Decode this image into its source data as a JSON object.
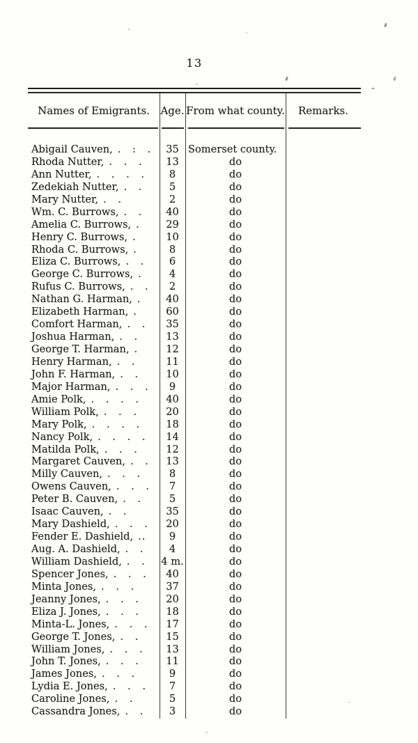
{
  "page": {
    "number": "13"
  },
  "table": {
    "headers": [
      "Names of Emigrants.",
      "Age.",
      "From what county.",
      "Remarks."
    ],
    "rows": [
      {
        "name": "Abigail Cauven,",
        "dots": ". : .",
        "age": "35",
        "county": "Somerset county."
      },
      {
        "name": "Rhoda Nutter,",
        "dots": ". . .",
        "age": "13",
        "county": "do"
      },
      {
        "name": "Ann Nutter,",
        "dots": ". . . .",
        "age": "8",
        "county": "do"
      },
      {
        "name": "Zedekiah Nutter,",
        "dots": ". .",
        "age": "5",
        "county": "do"
      },
      {
        "name": "Mary Nutter,",
        "dots": ". .",
        "age": "2",
        "county": "do"
      },
      {
        "name": "Wm. C. Burrows,",
        "dots": ". .",
        "age": "40",
        "county": "do"
      },
      {
        "name": "Amelia C. Burrows,",
        "dots": ".",
        "age": "29",
        "county": "do"
      },
      {
        "name": "Henry C. Burrows,",
        "dots": ".",
        "age": "10",
        "county": "do"
      },
      {
        "name": "Rhoda C. Burrows,",
        "dots": ".",
        "age": "8",
        "county": "do"
      },
      {
        "name": "Eliza C. Burrows,",
        "dots": ". .",
        "age": "6",
        "county": "do"
      },
      {
        "name": "George C. Burrows,",
        "dots": ".",
        "age": "4",
        "county": "do"
      },
      {
        "name": "Rufus C. Burrows,",
        "dots": ". .",
        "age": "2",
        "county": "do"
      },
      {
        "name": "Nathan G. Harman,",
        "dots": ".",
        "age": "40",
        "county": "do"
      },
      {
        "name": "Elizabeth Harman,",
        "dots": ".",
        "age": "60",
        "county": "do"
      },
      {
        "name": "Comfort Harman,",
        "dots": ". .",
        "age": "35",
        "county": "do"
      },
      {
        "name": "Joshua Harman,",
        "dots": ". .",
        "age": "13",
        "county": "do"
      },
      {
        "name": "George T. Harman,",
        "dots": ".",
        "age": "12",
        "county": "do"
      },
      {
        "name": "Henry Harman,",
        "dots": ". .",
        "age": "11",
        "county": "do"
      },
      {
        "name": "John F. Harman,",
        "dots": ". .",
        "age": "10",
        "county": "do"
      },
      {
        "name": "Major Harman,",
        "dots": ". . .",
        "age": "9",
        "county": "do"
      },
      {
        "name": "Amie Polk,",
        "dots": ". . . .",
        "age": "40",
        "county": "do"
      },
      {
        "name": "William Polk,",
        "dots": ". . .",
        "age": "20",
        "county": "do"
      },
      {
        "name": "Mary Polk,",
        "dots": ". . . .",
        "age": "18",
        "county": "do"
      },
      {
        "name": "Nancy Polk,",
        "dots": ". . . .",
        "age": "14",
        "county": "do"
      },
      {
        "name": "Matilda Polk,",
        "dots": ". . .",
        "age": "12",
        "county": "do"
      },
      {
        "name": "Margaret Cauven,",
        "dots": ". .",
        "age": "13",
        "county": "do"
      },
      {
        "name": "Milly Cauven,",
        "dots": ". . .",
        "age": "8",
        "county": "do"
      },
      {
        "name": "Owens Cauven,",
        "dots": ". . .",
        "age": "7",
        "county": "do"
      },
      {
        "name": "Peter B. Cauven,",
        "dots": ". .",
        "age": "5",
        "county": "do"
      },
      {
        "name": "Isaac Cauven,",
        "dots": ". .",
        "age": "35",
        "county": "do"
      },
      {
        "name": "Mary Dashield,",
        "dots": ". . .",
        "age": "20",
        "county": "do"
      },
      {
        "name": "Fender E. Dashield,",
        "dots": "..",
        "age": "9",
        "county": "do"
      },
      {
        "name": "Aug. A. Dashield,",
        "dots": ". .",
        "age": "4",
        "county": "do"
      },
      {
        "name": "William Dashield,",
        "dots": ". .",
        "age": "4 m.",
        "county": "do"
      },
      {
        "name": "Spencer Jones,",
        "dots": ". . .",
        "age": "40",
        "county": "do"
      },
      {
        "name": "Minta Jones,",
        "dots": ". . .",
        "age": "37",
        "county": "do"
      },
      {
        "name": "Jeanny Jones,",
        "dots": ". . .",
        "age": "20",
        "county": "do"
      },
      {
        "name": "Eliza J. Jones,",
        "dots": ". . .",
        "age": "18",
        "county": "do"
      },
      {
        "name": "Minta-L. Jones,",
        "dots": ". . . .",
        "age": "17",
        "county": "do"
      },
      {
        "name": "George T. Jones,",
        "dots": ". .",
        "age": "15",
        "county": "do"
      },
      {
        "name": "William Jones,",
        "dots": ". . .",
        "age": "13",
        "county": "do"
      },
      {
        "name": "John T. Jones,",
        "dots": ". . .",
        "age": "11",
        "county": "do"
      },
      {
        "name": "James Jones,",
        "dots": ". . .",
        "age": "9",
        "county": "do"
      },
      {
        "name": "Lydia E. Jones,",
        "dots": ". . .",
        "age": "7",
        "county": "do"
      },
      {
        "name": "Caroline Jones,",
        "dots": ". .",
        "age": "5",
        "county": "do"
      },
      {
        "name": "Cassandra Jones,",
        "dots": ". .",
        "age": "3",
        "county": "do"
      }
    ]
  }
}
